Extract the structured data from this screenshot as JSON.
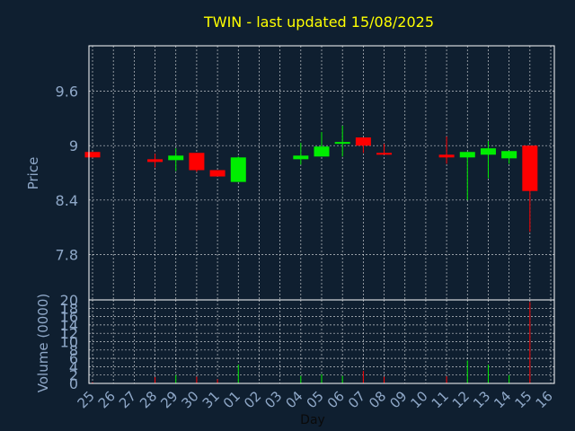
{
  "chart_data": {
    "type": "candlestick",
    "title": "TWIN - last updated 15/08/2025",
    "xlabel": "Day",
    "ylabel": "Price",
    "volume_label": "Volume (0000)",
    "price_ylim": [
      7.3,
      10.1
    ],
    "price_ticks": [
      7.8,
      8.4,
      9,
      9.6
    ],
    "volume_ylim": [
      0,
      20
    ],
    "volume_ticks": [
      0,
      2,
      4,
      6,
      8,
      10,
      12,
      14,
      16,
      18,
      20
    ],
    "grid": true,
    "categories": [
      "25",
      "26",
      "27",
      "28",
      "29",
      "30",
      "31",
      "01",
      "02",
      "03",
      "04",
      "05",
      "06",
      "07",
      "08",
      "09",
      "10",
      "11",
      "12",
      "13",
      "14",
      "15",
      "16"
    ],
    "candles": [
      {
        "day": "25",
        "open": 8.93,
        "close": 8.87,
        "high": 8.93,
        "low": 8.87,
        "volume": 0.3
      },
      {
        "day": "28",
        "open": 8.85,
        "close": 8.82,
        "high": 8.91,
        "low": 8.76,
        "volume": 1.5
      },
      {
        "day": "29",
        "open": 8.84,
        "close": 8.89,
        "high": 8.97,
        "low": 8.72,
        "volume": 2.0
      },
      {
        "day": "30",
        "open": 8.92,
        "close": 8.73,
        "high": 8.92,
        "low": 8.71,
        "volume": 1.6
      },
      {
        "day": "31",
        "open": 8.73,
        "close": 8.66,
        "high": 8.73,
        "low": 8.66,
        "volume": 1.0
      },
      {
        "day": "01",
        "open": 8.6,
        "close": 8.87,
        "high": 8.88,
        "low": 8.6,
        "volume": 4.5
      },
      {
        "day": "04",
        "open": 8.85,
        "close": 8.89,
        "high": 9.03,
        "low": 8.79,
        "volume": 1.8
      },
      {
        "day": "05",
        "open": 8.88,
        "close": 8.99,
        "high": 9.15,
        "low": 8.88,
        "volume": 2.2
      },
      {
        "day": "06",
        "open": 9.03,
        "close": 9.04,
        "high": 9.22,
        "low": 8.88,
        "volume": 1.8
      },
      {
        "day": "07",
        "open": 9.09,
        "close": 9.0,
        "high": 9.09,
        "low": 8.92,
        "volume": 3.0
      },
      {
        "day": "08",
        "open": 8.92,
        "close": 8.9,
        "high": 9.02,
        "low": 8.9,
        "volume": 1.6
      },
      {
        "day": "11",
        "open": 8.9,
        "close": 8.87,
        "high": 9.1,
        "low": 8.8,
        "volume": 1.7
      },
      {
        "day": "12",
        "open": 8.87,
        "close": 8.93,
        "high": 8.93,
        "low": 8.4,
        "volume": 5.5
      },
      {
        "day": "13",
        "open": 8.9,
        "close": 8.97,
        "high": 9.05,
        "low": 8.64,
        "volume": 4.5
      },
      {
        "day": "14",
        "open": 8.86,
        "close": 8.94,
        "high": 8.94,
        "low": 8.8,
        "volume": 2.0
      },
      {
        "day": "15",
        "open": 9.0,
        "close": 8.5,
        "high": 9.0,
        "low": 8.05,
        "volume": 19.5
      }
    ]
  },
  "colors": {
    "background": "#0f1f30",
    "axis": "#ffffff",
    "grid": "#ffffff",
    "title": "#ffff00",
    "label": "#8fa8c8",
    "up": "#00ee00",
    "down": "#ff0000"
  }
}
